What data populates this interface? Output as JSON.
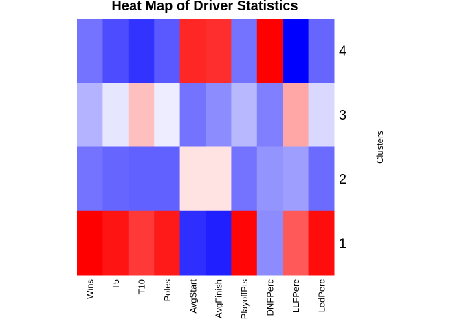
{
  "chart_data": {
    "type": "heatmap",
    "title": "Heat Map of Driver Statistics",
    "ylabel": "Clusters",
    "columns": [
      "Wins",
      "T5",
      "T10",
      "Poles",
      "AvgStart",
      "AvgFinish",
      "PlayoffPts",
      "DNFPerc",
      "LLFPerc",
      "LedPerc"
    ],
    "rows": [
      "4",
      "3",
      "2",
      "1"
    ],
    "color_scale": {
      "low": "#0000ff",
      "mid": "#ffffff",
      "high": "#ff0000"
    },
    "values": [
      [
        -0.55,
        -0.7,
        -0.8,
        -0.65,
        0.85,
        0.82,
        -0.55,
        1.0,
        -1.0,
        -0.6
      ],
      [
        -0.3,
        -0.1,
        0.25,
        -0.07,
        -0.55,
        -0.45,
        -0.28,
        -0.5,
        0.35,
        -0.15
      ],
      [
        -0.55,
        -0.6,
        -0.62,
        -0.62,
        0.11,
        0.11,
        -0.55,
        -0.42,
        -0.38,
        -0.58
      ],
      [
        1.0,
        0.92,
        0.78,
        0.9,
        -0.82,
        -0.88,
        0.98,
        -0.45,
        0.65,
        0.95
      ]
    ]
  }
}
